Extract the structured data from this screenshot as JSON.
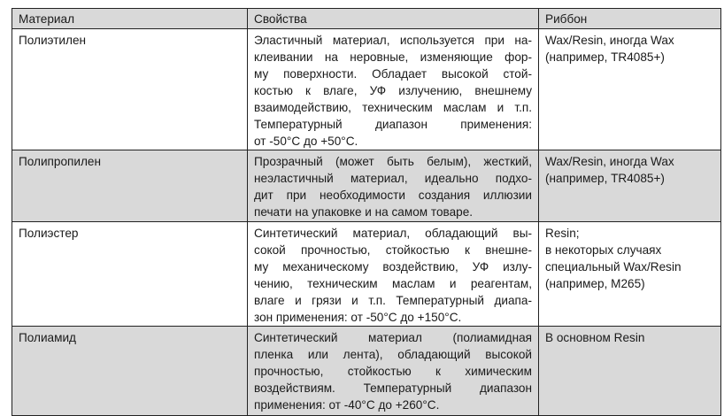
{
  "header": {
    "material": "Материал",
    "properties": "Свойства",
    "ribbon": "Риббон"
  },
  "rows": [
    {
      "material": "Полиэтилен",
      "shaded": false,
      "properties": [
        "Эластичный материал, используется при на-",
        "клеивании на неровные, изменяющие фор-",
        "му поверхности. Обладает высокой стой-",
        "костью к влаге, УФ излучению, внешнему",
        "взаимодействию, техническим маслам и т.п.",
        "Температурный диапазон применения:",
        "от -50°C до +50°C."
      ],
      "ribbon": [
        "Wax/Resin, иногда Wax",
        "(например, TR4085+)"
      ]
    },
    {
      "material": "Полипропилен",
      "shaded": true,
      "properties": [
        "Прозрачный (может быть белым), жесткий,",
        "неэластичный материал, идеально подхо-",
        "дит при необходимости создания иллюзии",
        "печати на упаковке и на самом товаре."
      ],
      "ribbon": [
        "Wax/Resin, иногда Wax",
        "(например, TR4085+)"
      ]
    },
    {
      "material": "Полиэстер",
      "shaded": false,
      "properties": [
        "Синтетический материал, обладающий вы-",
        "сокой прочностью, стойкостью к внешне-",
        "му механическому воздействию, УФ излу-",
        "чению, техническим маслам и реагентам,",
        "влаге и грязи и т.п. Температурный диапа-",
        "зон применения: от -50°C до +150°C."
      ],
      "ribbon": [
        "Resin;",
        "в некоторых случаях",
        "специальный Wax/Resin",
        "(например, M265)"
      ]
    },
    {
      "material": "Полиамид",
      "shaded": true,
      "properties": [
        "Синтетический материал (полиамидная",
        "пленка или лента), обладающий высокой",
        "прочностью, стойкостью к химическим",
        "воздействиям. Температурный диапазон",
        "применения: от -40°C до +260°C."
      ],
      "ribbon": [
        "В основном Resin"
      ]
    }
  ]
}
